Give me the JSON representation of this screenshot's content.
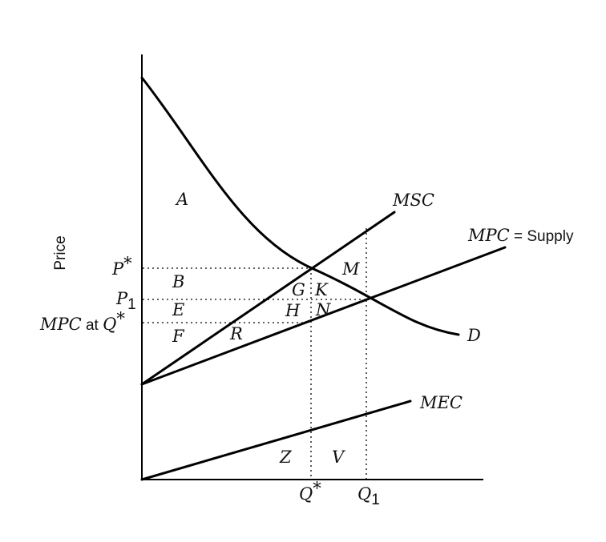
{
  "axis": {
    "ylabel": "Price"
  },
  "curves": {
    "msc": "MSC",
    "mpc_name": "MPC",
    "mpc_suffix": " = Supply",
    "demand": "D",
    "mec": "MEC"
  },
  "price_labels": {
    "p_star_letter": "P",
    "p_star_mark": "*",
    "p1_letter": "P",
    "p1_sub": "1",
    "mpc_qstar_name": "MPC",
    "mpc_qstar_at": " at ",
    "mpc_qstar_q": "Q",
    "mpc_qstar_mark": "*"
  },
  "quantity_labels": {
    "q_star_letter": "Q",
    "q_star_mark": "*",
    "q1_letter": "Q",
    "q1_sub": "1"
  },
  "areas": {
    "A": "A",
    "B": "B",
    "E": "E",
    "F": "F",
    "R": "R",
    "G": "G",
    "K": "K",
    "H": "H",
    "N": "N",
    "M": "M",
    "Z": "Z",
    "V": "V"
  }
}
